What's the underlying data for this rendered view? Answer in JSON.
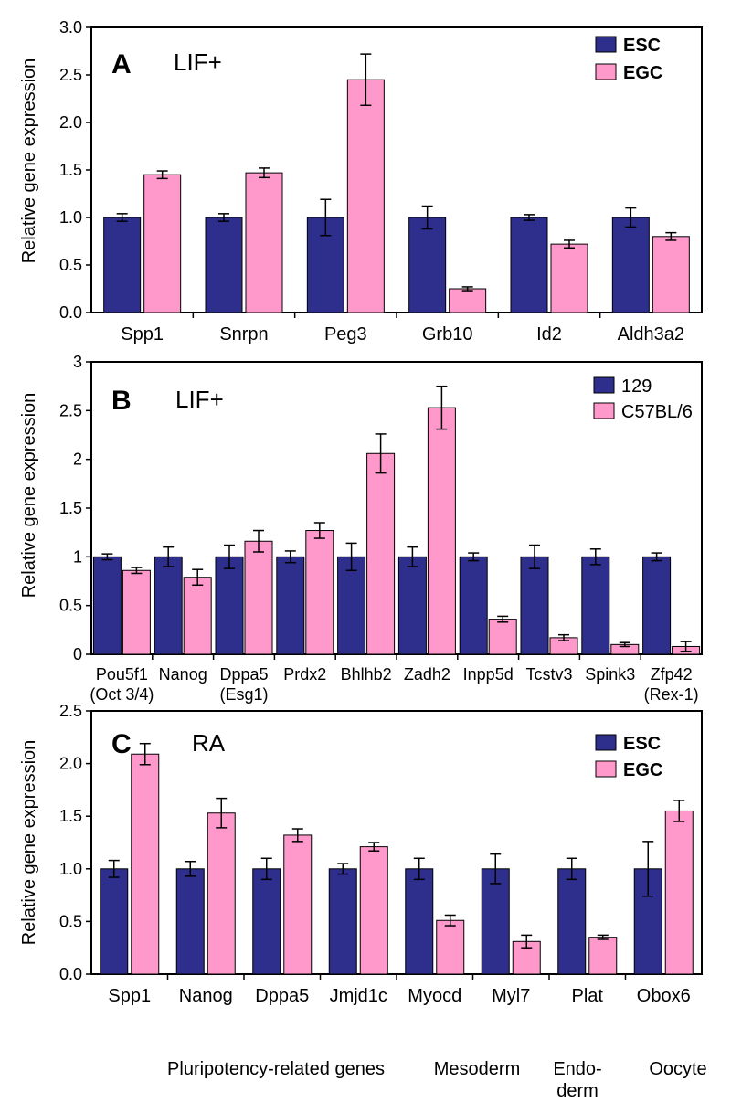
{
  "colors": {
    "series1": "#2E2E8C",
    "series2": "#FF99CC",
    "axis": "#000000"
  },
  "chart_data": [
    {
      "type": "bar",
      "panel_letter": "A",
      "panel_label": "LIF+",
      "ylabel": "Relative gene expression",
      "ylim": [
        0,
        3.0
      ],
      "yticks": [
        "0.0",
        "0.5",
        "1.0",
        "1.5",
        "2.0",
        "2.5",
        "3.0"
      ],
      "categories": [
        [
          "Spp1"
        ],
        [
          "Snrpn"
        ],
        [
          "Peg3"
        ],
        [
          "Grb10"
        ],
        [
          "Id2"
        ],
        [
          "Aldh3a2"
        ]
      ],
      "series": [
        {
          "name": "ESC",
          "values": [
            1.0,
            1.0,
            1.0,
            1.0,
            1.0,
            1.0
          ],
          "errors": [
            0.04,
            0.04,
            0.19,
            0.12,
            0.03,
            0.1
          ]
        },
        {
          "name": "EGC",
          "values": [
            1.45,
            1.47,
            2.45,
            0.25,
            0.72,
            0.8
          ],
          "errors": [
            0.04,
            0.05,
            0.27,
            0.02,
            0.04,
            0.04
          ]
        }
      ],
      "legend_bold": true,
      "legend": "top-right"
    },
    {
      "type": "bar",
      "panel_letter": "B",
      "panel_label": "LIF+",
      "ylabel": "Relative gene expression",
      "ylim": [
        0,
        3
      ],
      "yticks": [
        "0",
        "0.5",
        "1",
        "1.5",
        "2",
        "2.5",
        "3"
      ],
      "categories": [
        [
          "Pou5f1",
          "(Oct 3/4)"
        ],
        [
          "Nanog"
        ],
        [
          "Dppa5",
          "(Esg1)"
        ],
        [
          "Prdx2"
        ],
        [
          "Bhlhb2"
        ],
        [
          "Zadh2"
        ],
        [
          "Inpp5d"
        ],
        [
          "Tcstv3"
        ],
        [
          "Spink3"
        ],
        [
          "Zfp42",
          "(Rex-1)"
        ]
      ],
      "series": [
        {
          "name": "129",
          "values": [
            1.0,
            1.0,
            1.0,
            1.0,
            1.0,
            1.0,
            1.0,
            1.0,
            1.0,
            1.0
          ],
          "errors": [
            0.03,
            0.1,
            0.12,
            0.06,
            0.14,
            0.1,
            0.04,
            0.12,
            0.08,
            0.04
          ]
        },
        {
          "name": "C57BL/6",
          "values": [
            0.86,
            0.79,
            1.16,
            1.27,
            2.06,
            2.53,
            0.36,
            0.17,
            0.1,
            0.08
          ],
          "errors": [
            0.03,
            0.08,
            0.11,
            0.08,
            0.2,
            0.22,
            0.03,
            0.03,
            0.02,
            0.05
          ]
        }
      ],
      "legend_bold": false,
      "legend": "top-right"
    },
    {
      "type": "bar",
      "panel_letter": "C",
      "panel_label": "RA",
      "ylabel": "Relative gene expression",
      "ylim": [
        0,
        2.5
      ],
      "yticks": [
        "0.0",
        "0.5",
        "1.0",
        "1.5",
        "2.0",
        "2.5"
      ],
      "categories": [
        [
          "Spp1"
        ],
        [
          "Nanog"
        ],
        [
          "Dppa5"
        ],
        [
          "Jmjd1c"
        ],
        [
          "Myocd"
        ],
        [
          "Myl7"
        ],
        [
          "Plat"
        ],
        [
          "Obox6"
        ]
      ],
      "series": [
        {
          "name": "ESC",
          "values": [
            1.0,
            1.0,
            1.0,
            1.0,
            1.0,
            1.0,
            1.0,
            1.0
          ],
          "errors": [
            0.08,
            0.07,
            0.1,
            0.05,
            0.1,
            0.14,
            0.1,
            0.26
          ]
        },
        {
          "name": "EGC",
          "values": [
            2.09,
            1.53,
            1.32,
            1.21,
            0.51,
            0.31,
            0.35,
            1.55
          ],
          "errors": [
            0.1,
            0.14,
            0.06,
            0.04,
            0.05,
            0.06,
            0.02,
            0.1
          ]
        }
      ],
      "group_labels": [
        "Pluripotency-related genes",
        "Mesoderm",
        "Endo-",
        "derm",
        "Oocyte"
      ],
      "legend_bold": true,
      "legend": "top-right"
    }
  ]
}
